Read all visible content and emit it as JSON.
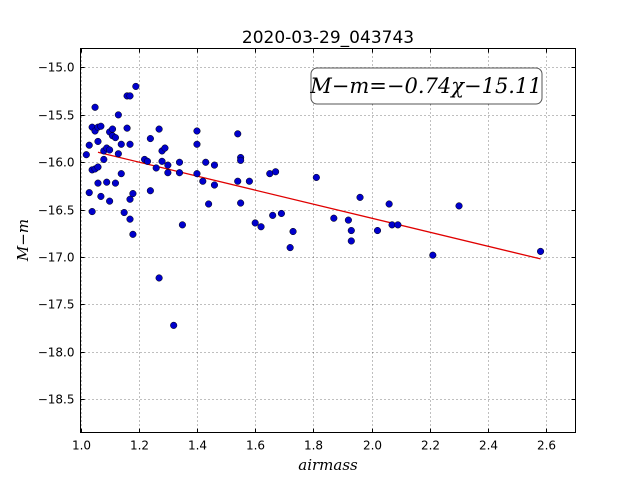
{
  "chart_data": {
    "type": "scatter",
    "title": "2020-03-29_043743",
    "xlabel": "airmass",
    "ylabel": "M−m",
    "xlim": [
      1.0,
      2.7
    ],
    "ylim": [
      -18.85,
      -14.8
    ],
    "y_inverted": true,
    "grid": true,
    "x_ticks": [
      1.0,
      1.2,
      1.4,
      1.6,
      1.8,
      2.0,
      2.2,
      2.4,
      2.6
    ],
    "y_ticks": [
      -15.0,
      -15.5,
      -16.0,
      -16.5,
      -17.0,
      -17.5,
      -18.0,
      -18.5
    ],
    "x_tick_labels": [
      "1.0",
      "1.2",
      "1.4",
      "1.6",
      "1.8",
      "2.0",
      "2.2",
      "2.4",
      "2.6"
    ],
    "y_tick_labels": [
      "−15.0",
      "−15.5",
      "−16.0",
      "−16.5",
      "−17.0",
      "−17.5",
      "−18.0",
      "−18.5"
    ],
    "annotation": "M−m=−0.74χ−15.11",
    "colors": {
      "points": "#0000cc",
      "fit": "#e00000"
    },
    "fit": {
      "slope": -0.74,
      "intercept": -15.11,
      "x_range": [
        1.06,
        2.58
      ]
    },
    "series": [
      {
        "points": [
          [
            1.02,
            -15.92
          ],
          [
            1.03,
            -15.82
          ],
          [
            1.03,
            -16.32
          ],
          [
            1.04,
            -15.63
          ],
          [
            1.04,
            -16.08
          ],
          [
            1.04,
            -16.52
          ],
          [
            1.05,
            -15.42
          ],
          [
            1.05,
            -15.67
          ],
          [
            1.05,
            -16.07
          ],
          [
            1.06,
            -15.63
          ],
          [
            1.06,
            -15.78
          ],
          [
            1.06,
            -16.05
          ],
          [
            1.06,
            -16.22
          ],
          [
            1.07,
            -15.62
          ],
          [
            1.07,
            -16.36
          ],
          [
            1.08,
            -15.97
          ],
          [
            1.08,
            -15.88
          ],
          [
            1.09,
            -15.85
          ],
          [
            1.09,
            -16.21
          ],
          [
            1.1,
            -16.41
          ],
          [
            1.1,
            -15.68
          ],
          [
            1.1,
            -15.87
          ],
          [
            1.11,
            -15.72
          ],
          [
            1.11,
            -15.65
          ],
          [
            1.12,
            -15.74
          ],
          [
            1.12,
            -16.22
          ],
          [
            1.13,
            -15.5
          ],
          [
            1.13,
            -15.91
          ],
          [
            1.14,
            -15.81
          ],
          [
            1.14,
            -16.12
          ],
          [
            1.15,
            -16.53
          ],
          [
            1.16,
            -15.3
          ],
          [
            1.16,
            -15.64
          ],
          [
            1.17,
            -15.3
          ],
          [
            1.17,
            -15.81
          ],
          [
            1.17,
            -16.6
          ],
          [
            1.17,
            -16.39
          ],
          [
            1.18,
            -16.76
          ],
          [
            1.18,
            -16.33
          ],
          [
            1.19,
            -15.2
          ],
          [
            1.22,
            -15.97
          ],
          [
            1.23,
            -15.99
          ],
          [
            1.24,
            -15.75
          ],
          [
            1.24,
            -16.3
          ],
          [
            1.26,
            -16.06
          ],
          [
            1.27,
            -15.65
          ],
          [
            1.27,
            -17.22
          ],
          [
            1.28,
            -15.88
          ],
          [
            1.28,
            -15.99
          ],
          [
            1.29,
            -15.85
          ],
          [
            1.3,
            -16.03
          ],
          [
            1.3,
            -16.11
          ],
          [
            1.32,
            -17.72
          ],
          [
            1.34,
            -16.11
          ],
          [
            1.34,
            -16.0
          ],
          [
            1.35,
            -16.66
          ],
          [
            1.4,
            -15.67
          ],
          [
            1.4,
            -15.81
          ],
          [
            1.4,
            -16.12
          ],
          [
            1.42,
            -16.2
          ],
          [
            1.43,
            -16.0
          ],
          [
            1.44,
            -16.44
          ],
          [
            1.46,
            -16.03
          ],
          [
            1.46,
            -16.24
          ],
          [
            1.54,
            -15.7
          ],
          [
            1.54,
            -16.2
          ],
          [
            1.55,
            -15.95
          ],
          [
            1.55,
            -15.98
          ],
          [
            1.55,
            -16.43
          ],
          [
            1.58,
            -16.2
          ],
          [
            1.6,
            -16.64
          ],
          [
            1.62,
            -16.68
          ],
          [
            1.65,
            -16.12
          ],
          [
            1.66,
            -16.56
          ],
          [
            1.67,
            -16.1
          ],
          [
            1.69,
            -16.54
          ],
          [
            1.72,
            -16.9
          ],
          [
            1.73,
            -16.73
          ],
          [
            1.81,
            -16.16
          ],
          [
            1.87,
            -16.59
          ],
          [
            1.92,
            -16.61
          ],
          [
            1.93,
            -16.72
          ],
          [
            1.93,
            -16.83
          ],
          [
            1.96,
            -16.37
          ],
          [
            2.02,
            -16.72
          ],
          [
            2.06,
            -16.44
          ],
          [
            2.07,
            -16.66
          ],
          [
            2.09,
            -16.66
          ],
          [
            2.21,
            -16.98
          ],
          [
            2.3,
            -16.46
          ],
          [
            2.58,
            -16.94
          ]
        ]
      }
    ]
  }
}
